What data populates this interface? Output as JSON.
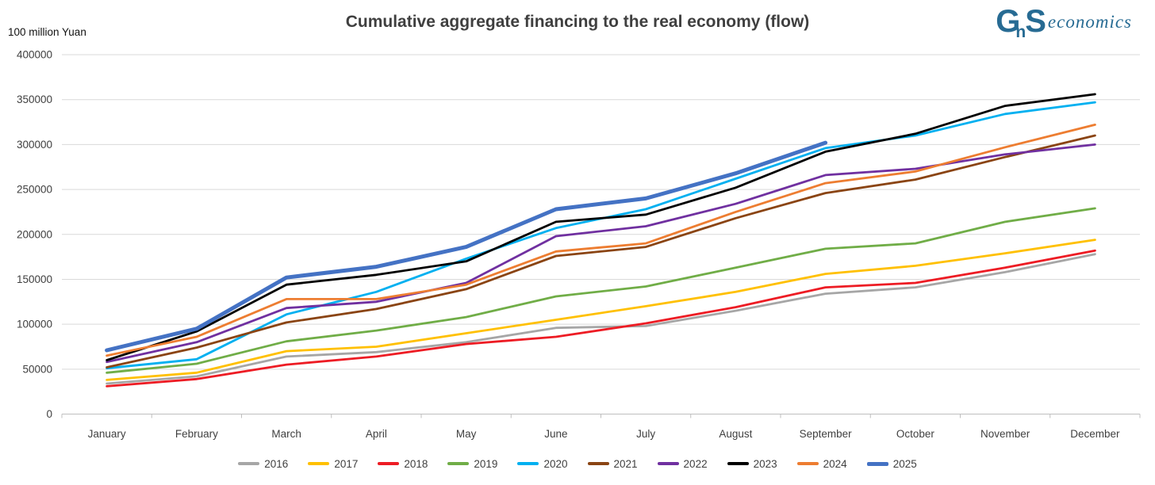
{
  "title": "Cumulative aggregate financing to the real economy (flow)",
  "y_axis_unit": "100 million Yuan",
  "logo": {
    "g": "G",
    "n": "n",
    "s": "S",
    "suffix": "economics",
    "color": "#276b93"
  },
  "colors": {
    "grid": "#d9d9d9",
    "axis": "#bfbfbf",
    "title_text": "#3f3f3f",
    "tick_text": "#404040"
  },
  "chart_data": {
    "type": "line",
    "title": "Cumulative aggregate financing to the real economy (flow)",
    "unit_label": "100 million Yuan",
    "grid": true,
    "legend_position": "bottom",
    "categories": [
      "January",
      "February",
      "March",
      "April",
      "May",
      "June",
      "July",
      "August",
      "September",
      "October",
      "November",
      "December"
    ],
    "y_axis": {
      "min": 0,
      "max": 400000,
      "step": 50000,
      "tick_labels": [
        "0",
        "50000",
        "100000",
        "150000",
        "200000",
        "250000",
        "300000",
        "350000",
        "400000"
      ]
    },
    "series": [
      {
        "name": "2016",
        "color": "#a6a6a6",
        "line_width": 2.8,
        "values": [
          34000,
          42000,
          64000,
          69000,
          80000,
          96000,
          98000,
          115000,
          134000,
          141000,
          158000,
          178000
        ]
      },
      {
        "name": "2017",
        "color": "#ffc000",
        "line_width": 2.8,
        "values": [
          38000,
          46000,
          70000,
          75000,
          90000,
          105000,
          120000,
          136000,
          156000,
          165000,
          179000,
          194000
        ]
      },
      {
        "name": "2018",
        "color": "#ed1c24",
        "line_width": 2.8,
        "values": [
          31000,
          39000,
          55000,
          64000,
          78000,
          86000,
          101000,
          119000,
          141000,
          146000,
          163000,
          182000
        ]
      },
      {
        "name": "2019",
        "color": "#70ad47",
        "line_width": 2.8,
        "values": [
          46000,
          56000,
          81000,
          93000,
          108000,
          131000,
          142000,
          163000,
          184000,
          190000,
          214000,
          229000
        ]
      },
      {
        "name": "2020",
        "color": "#00b0f0",
        "line_width": 2.8,
        "values": [
          51000,
          61000,
          111000,
          136000,
          173000,
          207000,
          228000,
          262000,
          296000,
          310000,
          334000,
          347000
        ]
      },
      {
        "name": "2021",
        "color": "#8a4413",
        "line_width": 2.8,
        "values": [
          52000,
          74000,
          102000,
          117000,
          139000,
          176000,
          186000,
          218000,
          246000,
          261000,
          286000,
          310000
        ]
      },
      {
        "name": "2022",
        "color": "#7030a0",
        "line_width": 2.8,
        "values": [
          58000,
          80000,
          118000,
          125000,
          146000,
          198000,
          209000,
          234000,
          266000,
          273000,
          289000,
          300000
        ]
      },
      {
        "name": "2023",
        "color": "#000000",
        "line_width": 2.8,
        "values": [
          60000,
          92000,
          144000,
          155000,
          170000,
          214000,
          222000,
          252000,
          292000,
          312000,
          343000,
          356000
        ]
      },
      {
        "name": "2024",
        "color": "#ed7d31",
        "line_width": 2.8,
        "values": [
          65000,
          86000,
          128000,
          128000,
          144000,
          181000,
          190000,
          225000,
          257000,
          270000,
          297000,
          322000
        ]
      },
      {
        "name": "2025",
        "color": "#4472c4",
        "line_width": 5,
        "values": [
          71000,
          95000,
          152000,
          164000,
          186000,
          228000,
          240000,
          268000,
          302000
        ]
      }
    ]
  }
}
